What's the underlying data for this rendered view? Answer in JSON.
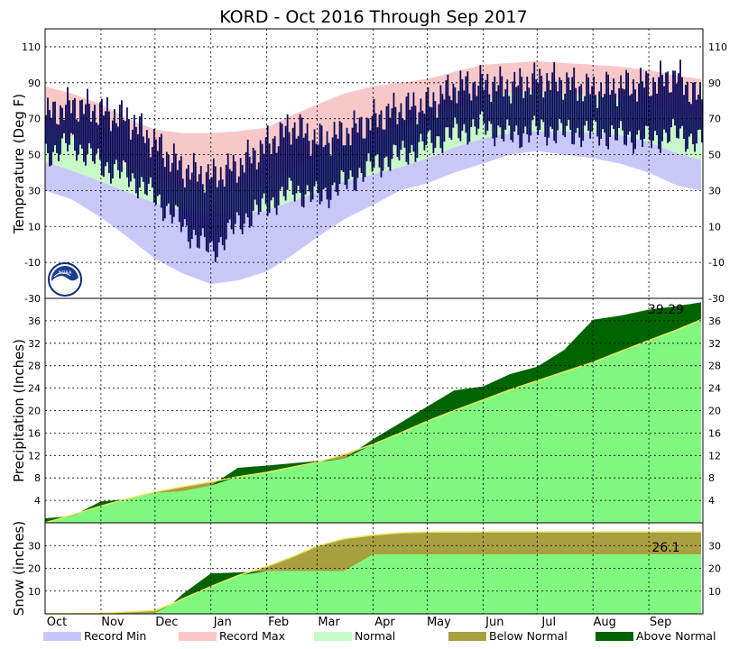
{
  "title": "KORD - Oct 2016 Through Sep 2017",
  "colors": {
    "record_min": "#c8c8f8",
    "record_max": "#f8c8c8",
    "normal": "#c8f8c8",
    "observed": "#0a0a5a",
    "precip_normal": "#80f880",
    "below_normal": "#a8a040",
    "above_normal": "#006400",
    "normal_line": "#e8e860",
    "grid": "#000000"
  },
  "x_axis": {
    "months": [
      "Oct",
      "Nov",
      "Dec",
      "Jan",
      "Feb",
      "Mar",
      "Apr",
      "May",
      "Jun",
      "Jul",
      "Aug",
      "Sep"
    ],
    "month_start_days": [
      0,
      31,
      61,
      92,
      123,
      151,
      182,
      212,
      243,
      273,
      304,
      335
    ],
    "total_days": 365
  },
  "legend": [
    {
      "label": "Record Min",
      "color": "#c8c8f8"
    },
    {
      "label": "Record Max",
      "color": "#f8c8c8"
    },
    {
      "label": "Normal",
      "color": "#c8f8c8"
    },
    {
      "label": "Below Normal",
      "color": "#a8a040"
    },
    {
      "label": "Above Normal",
      "color": "#006400"
    }
  ],
  "logo": {
    "text": "NOAA"
  },
  "chart_data": [
    {
      "type": "area",
      "panel": "temperature",
      "ylabel": "Temperature (Deg F)",
      "ylim": [
        -30,
        120
      ],
      "yticks": [
        -30,
        -10,
        10,
        30,
        50,
        70,
        90,
        110
      ],
      "grid": true,
      "x": [
        0,
        15,
        31,
        46,
        61,
        76,
        92,
        107,
        123,
        137,
        151,
        166,
        182,
        197,
        212,
        227,
        243,
        258,
        273,
        288,
        304,
        319,
        335,
        350,
        364
      ],
      "record_max": [
        88,
        84,
        78,
        70,
        64,
        62,
        62,
        63,
        65,
        72,
        78,
        84,
        88,
        90,
        92,
        96,
        100,
        101,
        102,
        101,
        100,
        99,
        97,
        94,
        92
      ],
      "normal_high": [
        66,
        60,
        52,
        44,
        36,
        32,
        31,
        32,
        35,
        42,
        48,
        55,
        60,
        65,
        70,
        76,
        81,
        84,
        85,
        84,
        83,
        81,
        78,
        73,
        69
      ],
      "normal_low": [
        46,
        41,
        35,
        29,
        23,
        19,
        17,
        17,
        19,
        24,
        29,
        35,
        39,
        43,
        48,
        54,
        59,
        62,
        63,
        63,
        62,
        61,
        57,
        51,
        47
      ],
      "record_min": [
        30,
        25,
        15,
        4,
        -8,
        -16,
        -22,
        -20,
        -15,
        -6,
        4,
        14,
        22,
        30,
        34,
        40,
        45,
        50,
        52,
        50,
        48,
        45,
        40,
        33,
        30
      ],
      "observed_high": [
        72,
        78,
        74,
        70,
        56,
        42,
        38,
        44,
        56,
        66,
        58,
        62,
        70,
        76,
        78,
        88,
        90,
        88,
        92,
        90,
        86,
        88,
        90,
        94,
        80
      ],
      "observed_low": [
        50,
        56,
        44,
        38,
        26,
        10,
        -4,
        12,
        22,
        30,
        26,
        34,
        44,
        50,
        56,
        62,
        66,
        60,
        64,
        62,
        62,
        60,
        58,
        62,
        56
      ]
    },
    {
      "type": "area",
      "panel": "precipitation",
      "ylabel": "Precipitation (Inches)",
      "ylim": [
        0,
        40
      ],
      "yticks": [
        4,
        8,
        12,
        16,
        20,
        24,
        28,
        32,
        36
      ],
      "grid": true,
      "annotation": "39.29",
      "x": [
        0,
        15,
        31,
        46,
        61,
        76,
        92,
        107,
        123,
        137,
        151,
        166,
        182,
        197,
        212,
        227,
        243,
        258,
        273,
        288,
        304,
        319,
        335,
        350,
        364
      ],
      "normal_cumulative": [
        0,
        1.4,
        3.0,
        4.3,
        5.5,
        6.4,
        7.3,
        8.2,
        9.0,
        9.9,
        10.8,
        12.2,
        14.0,
        16.0,
        18.1,
        20.0,
        21.9,
        23.7,
        25.3,
        26.9,
        28.6,
        30.5,
        32.5,
        34.3,
        36.2
      ],
      "observed_cumulative": [
        0.8,
        1.2,
        3.8,
        4.2,
        5.3,
        5.6,
        6.6,
        9.8,
        10.2,
        10.6,
        11.0,
        11.4,
        14.9,
        17.8,
        20.7,
        23.6,
        24.3,
        26.5,
        27.8,
        30.8,
        36.2,
        36.9,
        38.0,
        38.6,
        39.29
      ]
    },
    {
      "type": "area",
      "panel": "snow",
      "ylabel": "Snow (inches)",
      "ylim": [
        0,
        40
      ],
      "yticks": [
        10,
        20,
        30
      ],
      "grid": true,
      "annotation": "26.1",
      "x": [
        0,
        31,
        61,
        71,
        76,
        92,
        107,
        123,
        137,
        151,
        166,
        182,
        197,
        212,
        243,
        273,
        304,
        335,
        364
      ],
      "normal_cumulative": [
        0,
        0.2,
        1.5,
        4.5,
        6.5,
        12.0,
        16.8,
        20.8,
        25.0,
        29.8,
        33.0,
        34.6,
        35.6,
        35.9,
        36.0,
        36.0,
        36.0,
        36.0,
        36.0
      ],
      "observed_cumulative": [
        0,
        0,
        0.3,
        4.8,
        8.5,
        17.8,
        18.2,
        18.7,
        18.8,
        18.8,
        18.8,
        26.1,
        26.1,
        26.1,
        26.1,
        26.1,
        26.1,
        26.1,
        26.1
      ]
    }
  ]
}
